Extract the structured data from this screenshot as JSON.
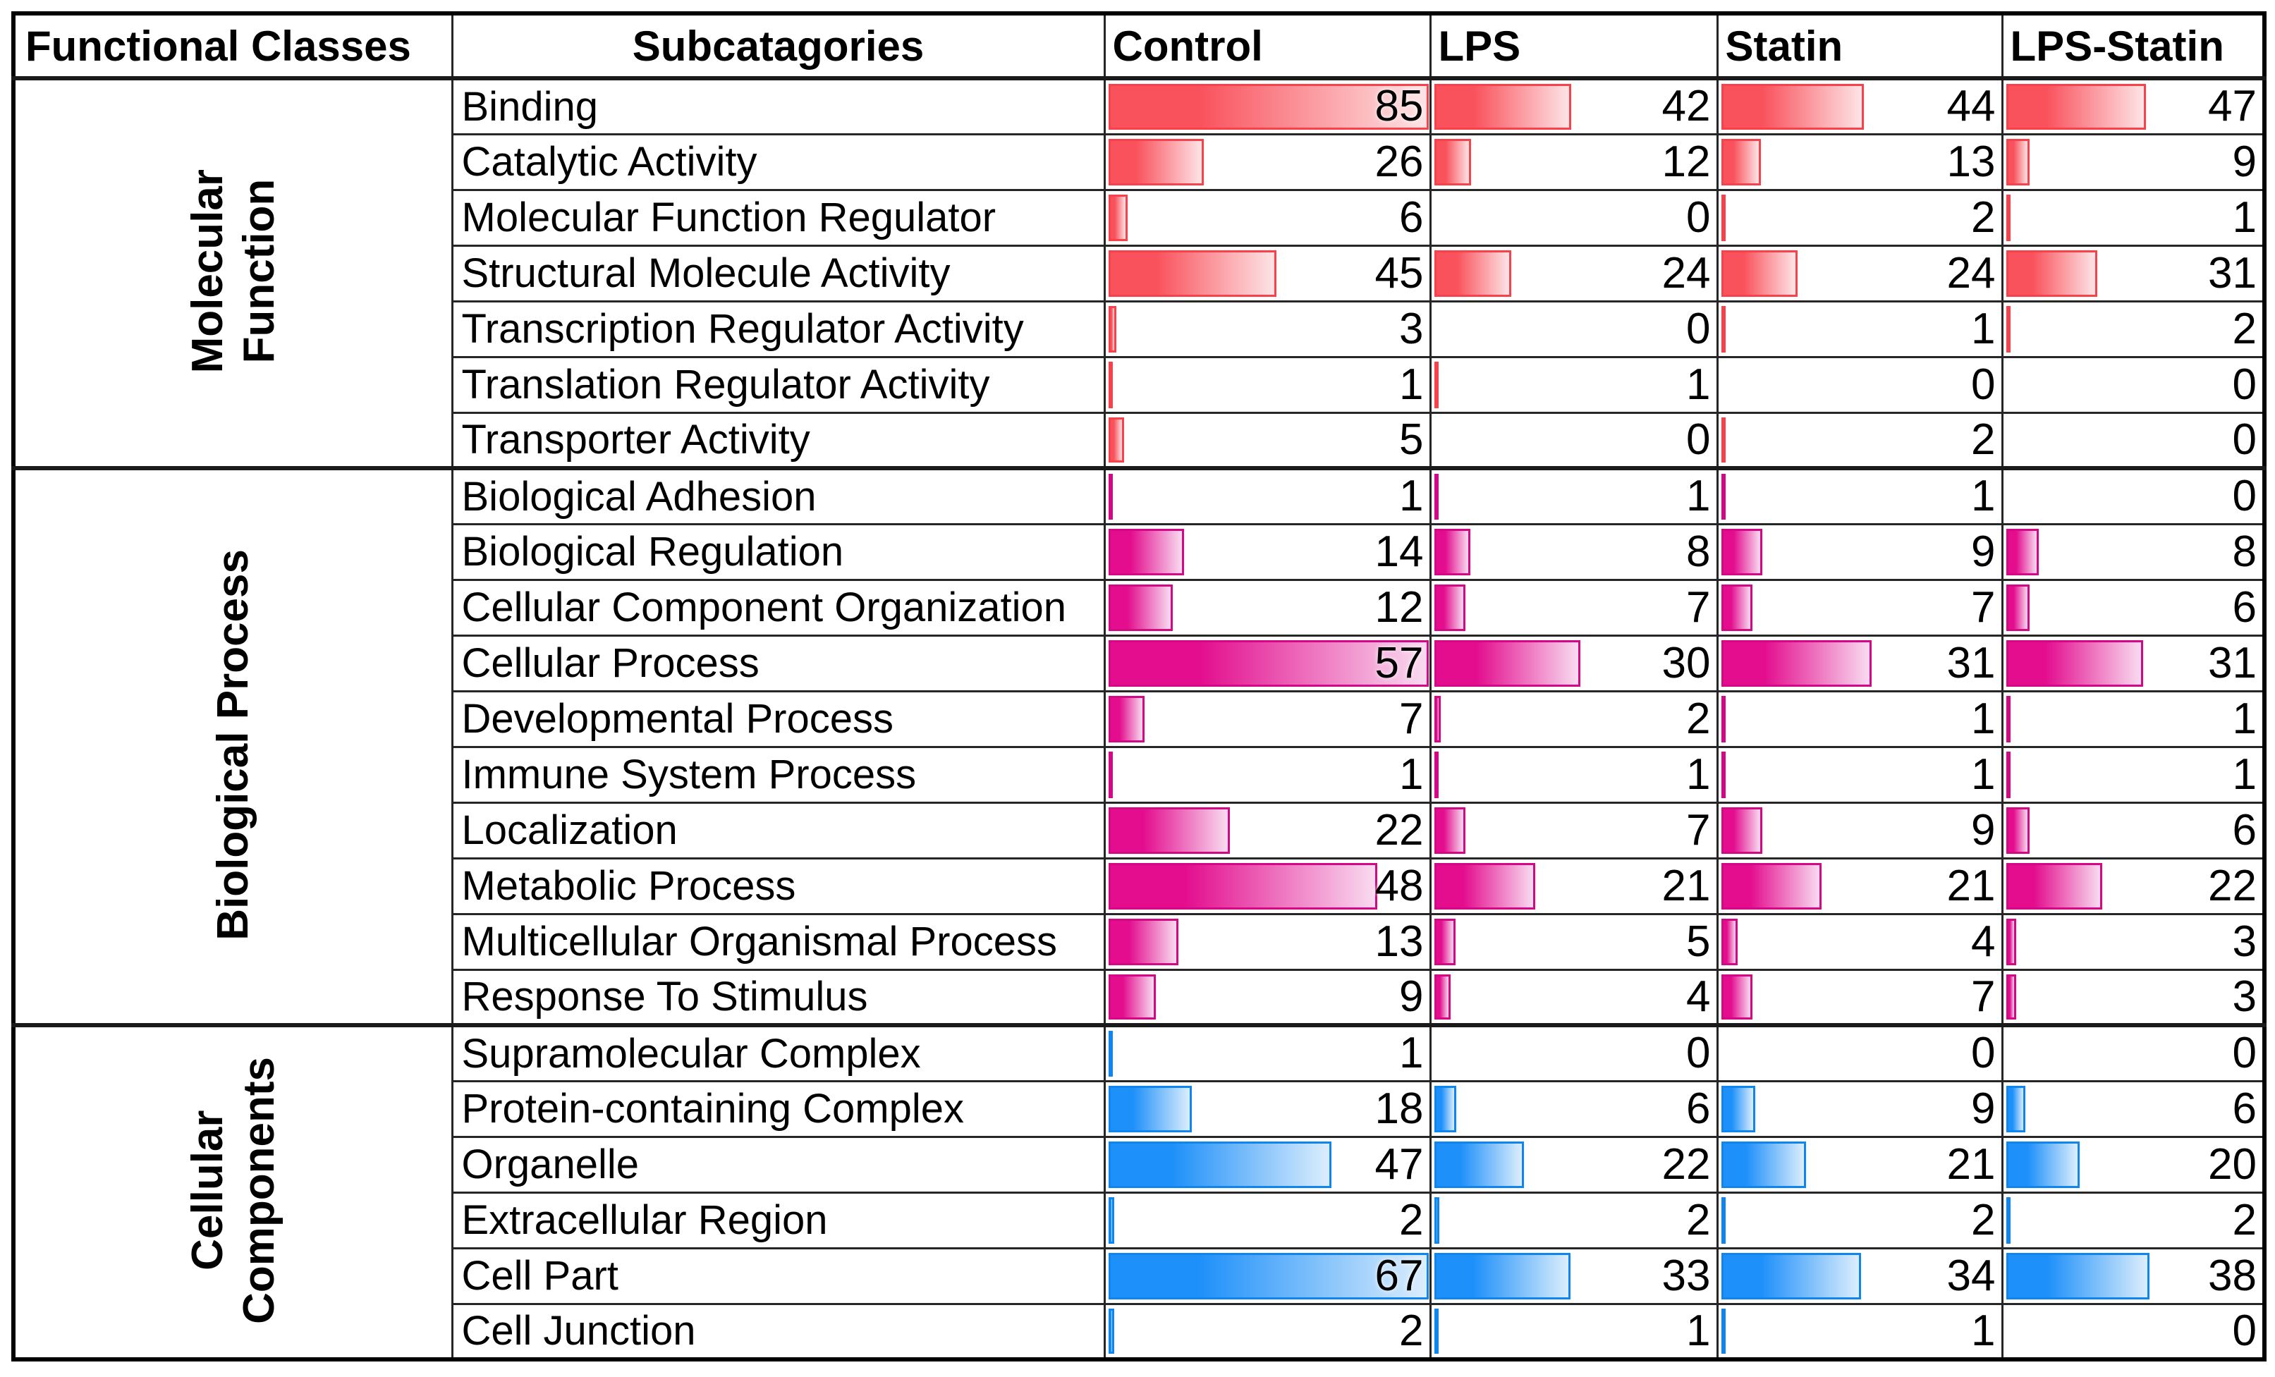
{
  "header": {
    "functional_classes": "Functional Classes",
    "subcategories": "Subcatagories"
  },
  "chart_data": {
    "type": "bar",
    "orientation": "horizontal-data-bars-in-table",
    "conditions": [
      "Control",
      "LPS",
      "Statin",
      "LPS-Statin"
    ],
    "sections": [
      {
        "name": "Molecular Function",
        "label_lines": [
          "Molecular",
          "Function"
        ],
        "bar_fill": "#F9525C",
        "bar_border": "#F8414B",
        "bar_fade": "#FDE4E6",
        "scale_max": 85,
        "rows": [
          {
            "label": "Binding",
            "values": [
              85,
              42,
              44,
              47
            ]
          },
          {
            "label": "Catalytic Activity",
            "values": [
              26,
              12,
              13,
              9
            ]
          },
          {
            "label": "Molecular Function Regulator",
            "values": [
              6,
              0,
              2,
              1
            ]
          },
          {
            "label": "Structural Molecule Activity",
            "values": [
              45,
              24,
              24,
              31
            ]
          },
          {
            "label": "Transcription Regulator Activity",
            "values": [
              3,
              0,
              1,
              2
            ]
          },
          {
            "label": "Translation Regulator Activity",
            "values": [
              1,
              1,
              0,
              0
            ]
          },
          {
            "label": "Transporter Activity",
            "values": [
              5,
              0,
              2,
              0
            ]
          }
        ]
      },
      {
        "name": "Biological Process",
        "label_lines": [
          "Biological Process"
        ],
        "bar_fill": "#E30D8E",
        "bar_border": "#D40784",
        "bar_fade": "#F9DBF0",
        "scale_max": 57,
        "rows": [
          {
            "label": "Biological Adhesion",
            "values": [
              1,
              1,
              1,
              0
            ]
          },
          {
            "label": "Biological Regulation",
            "values": [
              14,
              8,
              9,
              8
            ]
          },
          {
            "label": "Cellular Component Organization",
            "values": [
              12,
              7,
              7,
              6
            ]
          },
          {
            "label": "Cellular Process",
            "values": [
              57,
              30,
              31,
              31
            ]
          },
          {
            "label": "Developmental Process",
            "values": [
              7,
              2,
              1,
              1
            ]
          },
          {
            "label": "Immune System Process",
            "values": [
              1,
              1,
              1,
              1
            ]
          },
          {
            "label": "Localization",
            "values": [
              22,
              7,
              9,
              6
            ]
          },
          {
            "label": "Metabolic Process",
            "values": [
              48,
              21,
              21,
              22
            ]
          },
          {
            "label": "Multicellular Organismal Process",
            "values": [
              13,
              5,
              4,
              3
            ]
          },
          {
            "label": "Response To Stimulus",
            "values": [
              9,
              4,
              7,
              3
            ]
          }
        ]
      },
      {
        "name": "Cellular Components",
        "label_lines": [
          "Cellular",
          "Components"
        ],
        "bar_fill": "#1E90FA",
        "bar_border": "#0F86EF",
        "bar_fade": "#DCEEFC",
        "scale_max": 67,
        "rows": [
          {
            "label": "Supramolecular Complex",
            "values": [
              1,
              0,
              0,
              0
            ]
          },
          {
            "label": "Protein-containing Complex",
            "values": [
              18,
              6,
              9,
              6
            ]
          },
          {
            "label": "Organelle",
            "values": [
              47,
              22,
              21,
              20
            ]
          },
          {
            "label": "Extracellular Region",
            "values": [
              2,
              2,
              2,
              2
            ]
          },
          {
            "label": "Cell Part",
            "values": [
              67,
              33,
              34,
              38
            ]
          },
          {
            "label": "Cell Junction",
            "values": [
              2,
              1,
              1,
              0
            ]
          }
        ]
      }
    ]
  }
}
